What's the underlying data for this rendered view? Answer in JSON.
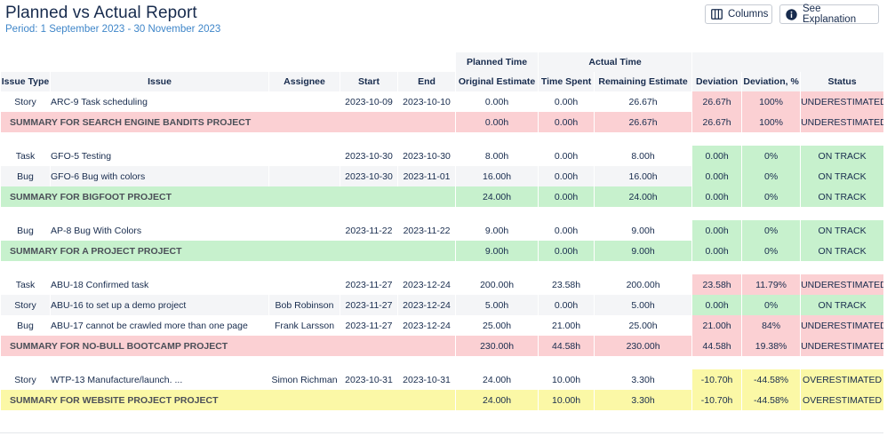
{
  "header": {
    "title": "Planned vs Actual Report",
    "period": "Period: 1 September 2023 - 30 November 2023",
    "columns_label": "Columns",
    "explain_label": "See Explanation"
  },
  "table": {
    "group_headers": {
      "planned": "Planned Time",
      "actual": "Actual Time"
    },
    "columns": [
      "Issue Type",
      "Issue",
      "Assignee",
      "Start",
      "End",
      "Original Estimate",
      "Time Spent",
      "Remaining Estimate",
      "Deviation",
      "Deviation, %",
      "Status"
    ],
    "groups": [
      {
        "rows": [
          {
            "type": "Story",
            "issue": "ARC-9 Task scheduling",
            "assignee": "",
            "start": "2023-10-09",
            "end": "2023-10-10",
            "orig": "0.00h",
            "spent": "0.00h",
            "remaining": "26.67h",
            "dev": "26.67h",
            "devpct": "100%",
            "status": "UNDERESTIMATED",
            "tone": "red"
          }
        ],
        "summary": {
          "label": "SUMMARY FOR SEARCH ENGINE BANDITS PROJECT",
          "orig": "0.00h",
          "spent": "0.00h",
          "remaining": "26.67h",
          "dev": "26.67h",
          "devpct": "100%",
          "status": "UNDERESTIMATED",
          "tone": "red"
        }
      },
      {
        "rows": [
          {
            "type": "Task",
            "issue": "GFO-5 Testing",
            "assignee": "",
            "start": "2023-10-30",
            "end": "2023-10-30",
            "orig": "8.00h",
            "spent": "0.00h",
            "remaining": "8.00h",
            "dev": "0.00h",
            "devpct": "0%",
            "status": "ON TRACK",
            "tone": "green"
          },
          {
            "type": "Bug",
            "issue": "GFO-6 Bug with colors",
            "assignee": "",
            "start": "2023-10-30",
            "end": "2023-11-01",
            "orig": "16.00h",
            "spent": "0.00h",
            "remaining": "16.00h",
            "dev": "0.00h",
            "devpct": "0%",
            "status": "ON TRACK",
            "tone": "green"
          }
        ],
        "summary": {
          "label": "SUMMARY FOR BIGFOOT PROJECT",
          "orig": "24.00h",
          "spent": "0.00h",
          "remaining": "24.00h",
          "dev": "0.00h",
          "devpct": "0%",
          "status": "ON TRACK",
          "tone": "green"
        }
      },
      {
        "rows": [
          {
            "type": "Bug",
            "issue": "AP-8 Bug With Colors",
            "assignee": "",
            "start": "2023-11-22",
            "end": "2023-11-22",
            "orig": "9.00h",
            "spent": "0.00h",
            "remaining": "9.00h",
            "dev": "0.00h",
            "devpct": "0%",
            "status": "ON TRACK",
            "tone": "green"
          }
        ],
        "summary": {
          "label": "SUMMARY FOR A PROJECT PROJECT",
          "orig": "9.00h",
          "spent": "0.00h",
          "remaining": "9.00h",
          "dev": "0.00h",
          "devpct": "0%",
          "status": "ON TRACK",
          "tone": "green"
        }
      },
      {
        "rows": [
          {
            "type": "Task",
            "issue": "ABU-18 Confirmed task",
            "assignee": "",
            "start": "2023-11-27",
            "end": "2023-12-24",
            "orig": "200.00h",
            "spent": "23.58h",
            "remaining": "200.00h",
            "dev": "23.58h",
            "devpct": "11.79%",
            "status": "UNDERESTIMATED",
            "tone": "red"
          },
          {
            "type": "Story",
            "issue": "ABU-16 to set up a demo project",
            "assignee": "Bob Robinson",
            "start": "2023-11-27",
            "end": "2023-12-24",
            "orig": "5.00h",
            "spent": "0.00h",
            "remaining": "5.00h",
            "dev": "0.00h",
            "devpct": "0%",
            "status": "ON TRACK",
            "tone": "green"
          },
          {
            "type": "Bug",
            "issue": "ABU-17 cannot be crawled more than one page",
            "assignee": "Frank Larsson",
            "start": "2023-11-27",
            "end": "2023-12-24",
            "orig": "25.00h",
            "spent": "21.00h",
            "remaining": "25.00h",
            "dev": "21.00h",
            "devpct": "84%",
            "status": "UNDERESTIMATED",
            "tone": "red"
          }
        ],
        "summary": {
          "label": "SUMMARY FOR NO-BULL BOOTCAMP PROJECT",
          "orig": "230.00h",
          "spent": "44.58h",
          "remaining": "230.00h",
          "dev": "44.58h",
          "devpct": "19.38%",
          "status": "UNDERESTIMATED",
          "tone": "red"
        }
      },
      {
        "rows": [
          {
            "type": "Story",
            "issue": "WTP-13 Manufacture/launch. ...",
            "assignee": "Simon Richman",
            "start": "2023-10-31",
            "end": "2023-10-31",
            "orig": "24.00h",
            "spent": "10.00h",
            "remaining": "3.30h",
            "dev": "-10.70h",
            "devpct": "-44.58%",
            "status": "OVERESTIMATED",
            "tone": "yellow"
          }
        ],
        "summary": {
          "label": "SUMMARY FOR WEBSITE PROJECT PROJECT",
          "orig": "24.00h",
          "spent": "10.00h",
          "remaining": "3.30h",
          "dev": "-10.70h",
          "devpct": "-44.58%",
          "status": "OVERESTIMATED",
          "tone": "yellow"
        }
      }
    ]
  },
  "icons": {
    "columns": "columns-icon",
    "explain": "info-icon"
  },
  "colors": {
    "red": "#fbd0d3",
    "green": "#c7f1cd",
    "yellow": "#fbf8a6",
    "period": "#3f86c9",
    "header_bg": "#f4f5f7"
  }
}
